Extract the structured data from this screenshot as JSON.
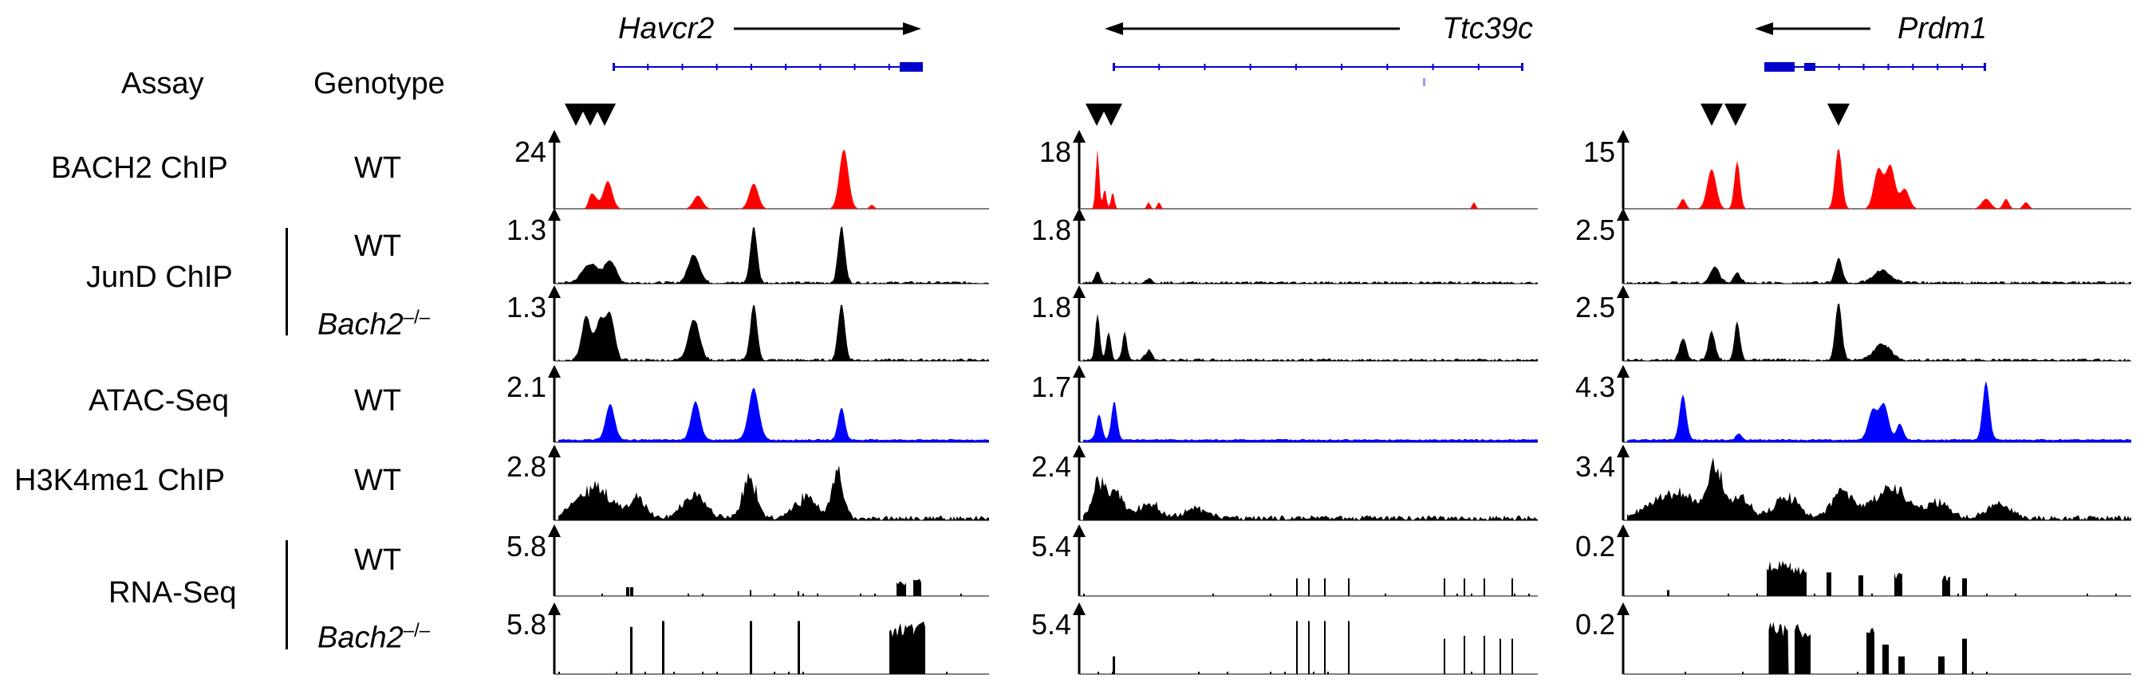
{
  "header": {
    "assay": "Assay",
    "genotype": "Genotype"
  },
  "rows": [
    {
      "assay": "BACH2 ChIP",
      "genotype": "WT",
      "color": "#ff0000",
      "style": "peaks"
    },
    {
      "assay": "JunD ChIP",
      "genotype": "WT",
      "color": "#000000",
      "style": "peaks"
    },
    {
      "assay": "",
      "genotype": "Bach2",
      "genotype_sup": "–/–",
      "color": "#000000",
      "style": "peaks"
    },
    {
      "assay": "ATAC-Seq",
      "genotype": "WT",
      "color": "#0000ff",
      "style": "peaks"
    },
    {
      "assay": "H3K4me1 ChIP",
      "genotype": "WT",
      "color": "#000000",
      "style": "broad"
    },
    {
      "assay": "RNA-Seq",
      "genotype": "WT",
      "color": "#000000",
      "style": "bars"
    },
    {
      "assay": "",
      "genotype": "Bach2",
      "genotype_sup": "–/–",
      "color": "#000000",
      "style": "bars"
    }
  ],
  "panels": [
    {
      "gene": "Havcr2",
      "direction": "right",
      "scales": [
        "24",
        "1.3",
        "1.3",
        "2.1",
        "2.8",
        "5.8",
        "5.8"
      ]
    },
    {
      "gene": "Ttc39c",
      "direction": "left",
      "scales": [
        "18",
        "1.8",
        "1.8",
        "1.7",
        "2.4",
        "5.4",
        "5.4"
      ]
    },
    {
      "gene": "Prdm1",
      "direction": "left",
      "scales": [
        "15",
        "2.5",
        "2.5",
        "4.3",
        "3.4",
        "0.2",
        "0.2"
      ]
    }
  ],
  "colors": {
    "gene_model": "#0000cc",
    "bach2": "#ff0000",
    "atac": "#0000ff",
    "default": "#000000"
  },
  "icons": {
    "bach2_site_marker": "down-triangle-icon",
    "scale_axis": "up-arrow-icon"
  }
}
